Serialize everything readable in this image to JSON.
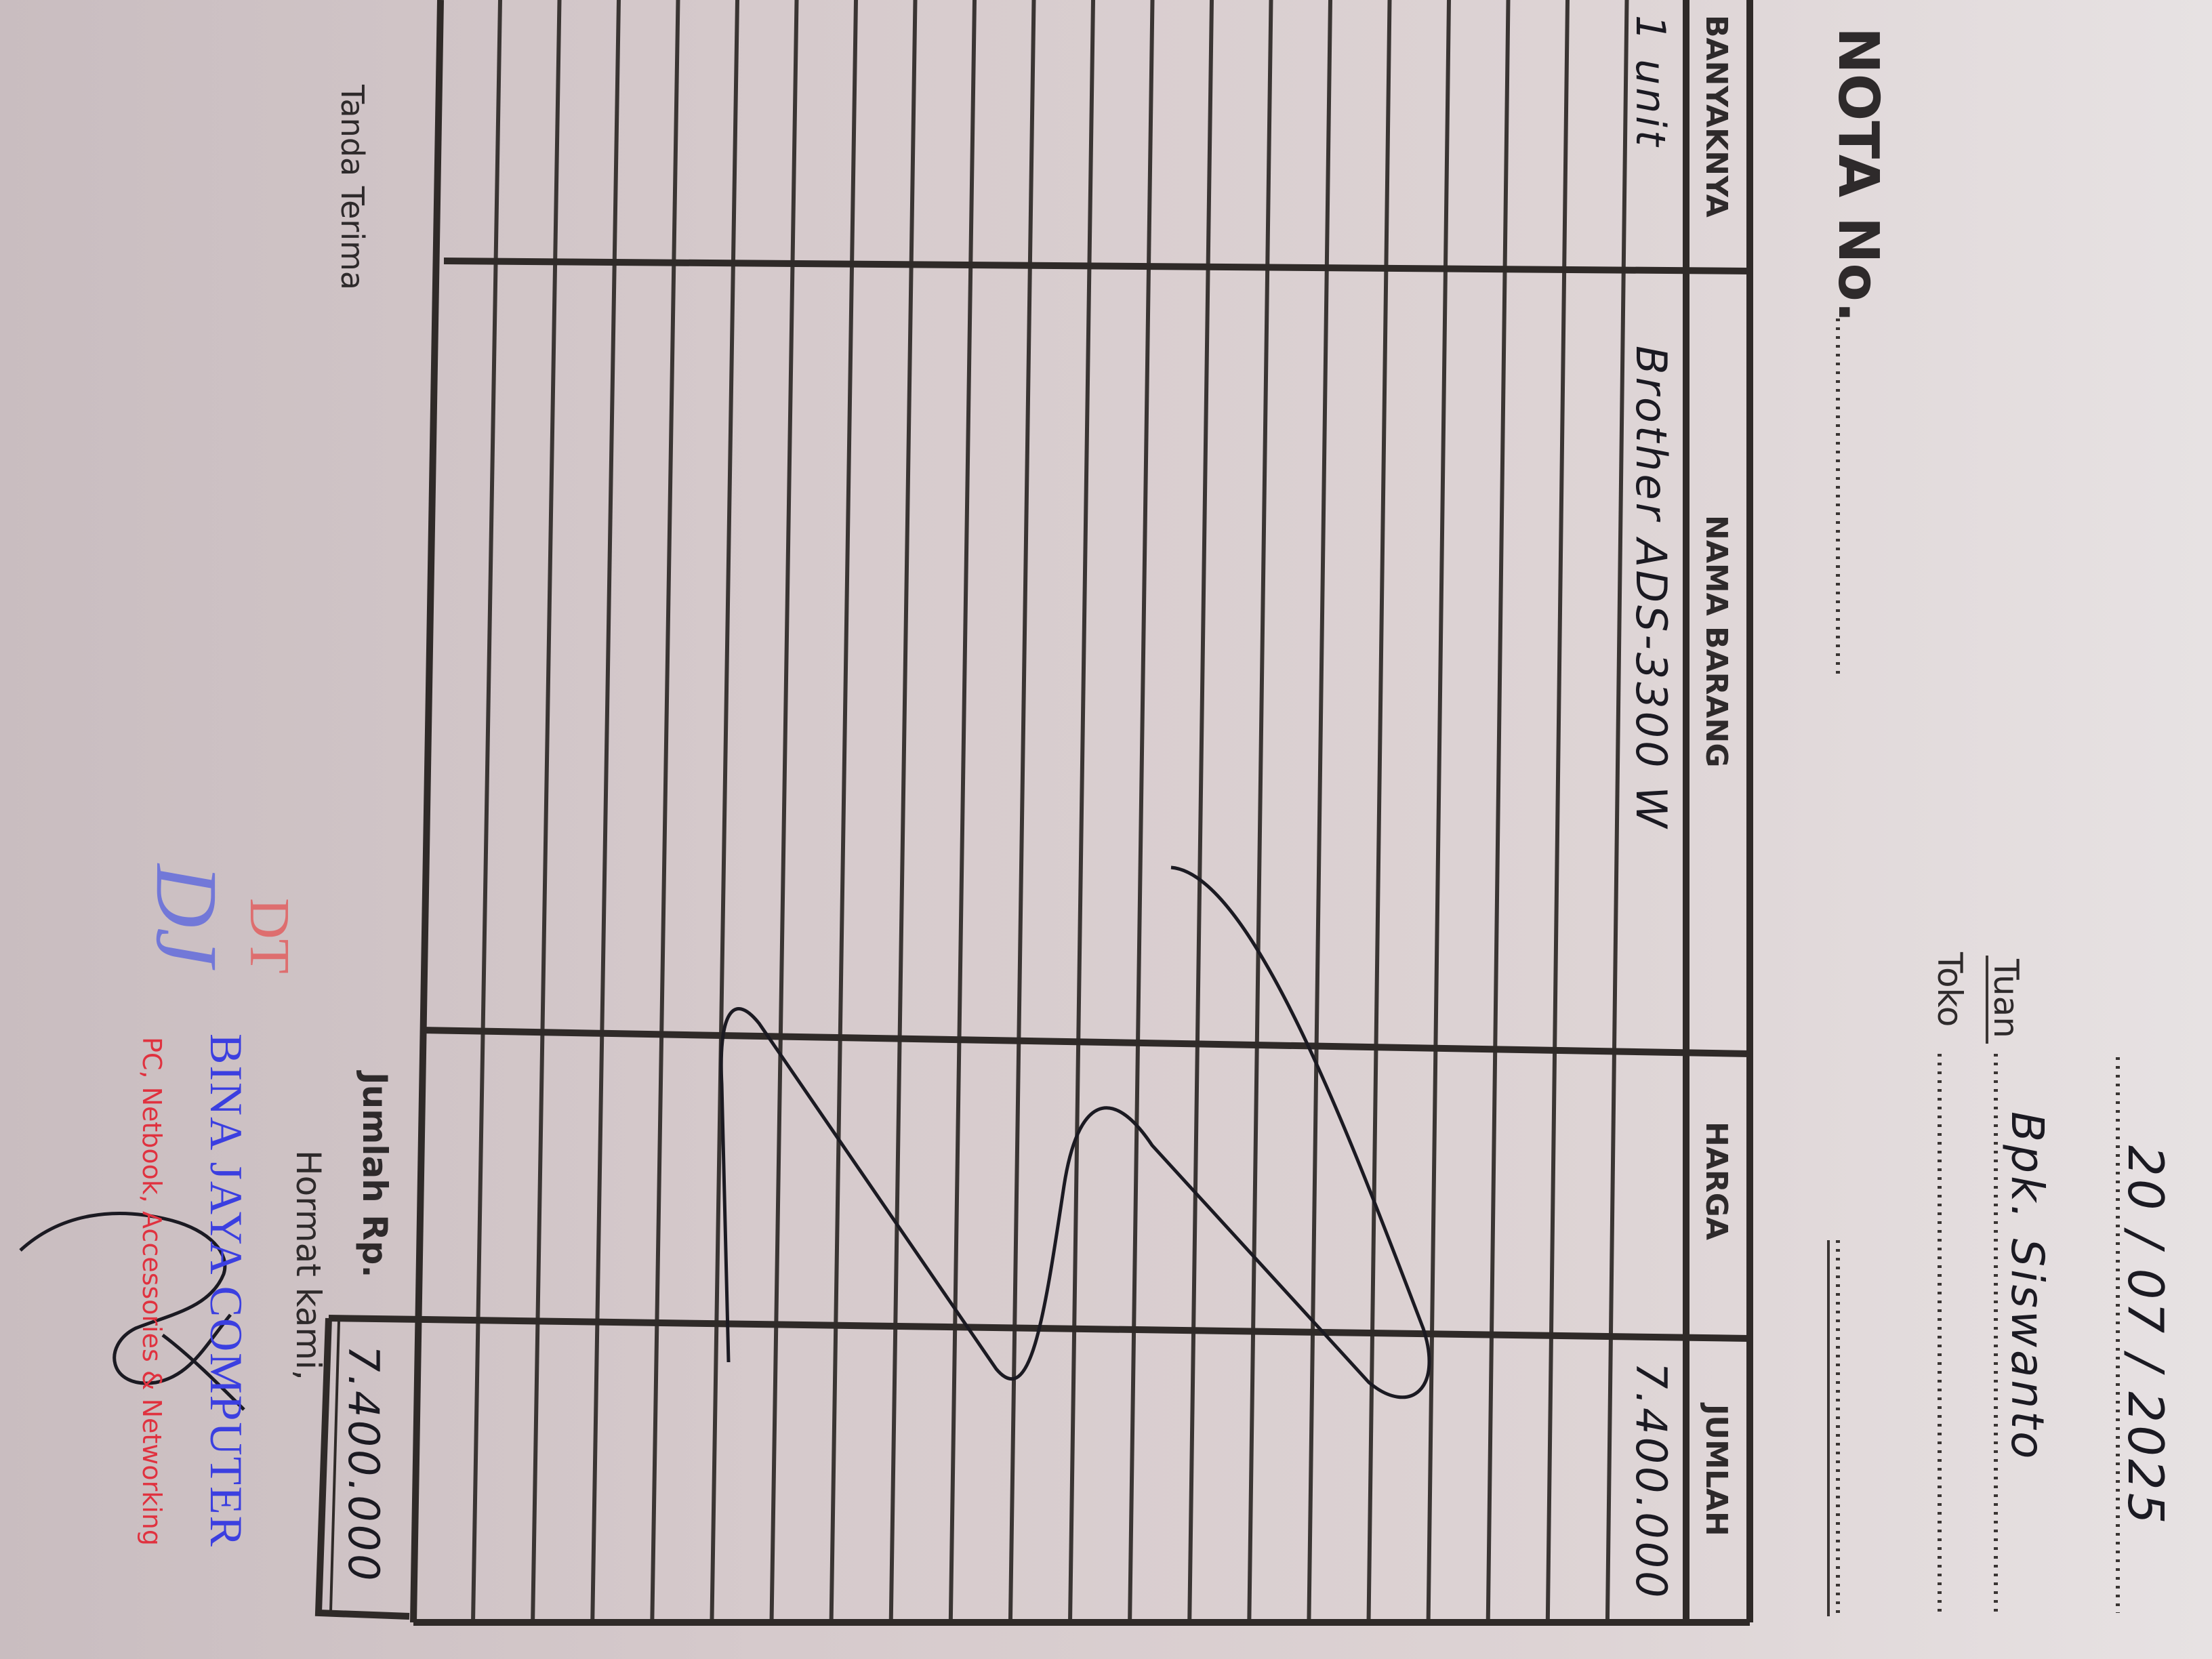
{
  "header": {
    "date": "20 / 07 / 2025",
    "tuan_label": "Tuan",
    "tuan_value": "Bpk. Siswanto",
    "toko_label": "Toko",
    "toko_value": "",
    "nota_label": "NOTA No."
  },
  "table": {
    "columns": [
      "BANYAKNYA",
      "NAMA BARANG",
      "HARGA",
      "JUMLAH"
    ],
    "rows": [
      {
        "banyaknya": "1 unit",
        "nama_barang": "Brother ADS-3300 W",
        "harga": "",
        "jumlah": "7.400.000"
      }
    ],
    "total_label": "Jumlah Rp.",
    "total_value": "7.400.000"
  },
  "footer": {
    "tanda_terima": "Tanda Terima",
    "hormat_kami": "Hormat kami,"
  },
  "stamp": {
    "logo_letters": "DJ DT",
    "company": "BINA JAYA COMPUTER",
    "tagline": "PC, Netbook, Accessories & Networking",
    "colors": {
      "company": "#3b3fe0",
      "tagline": "#e0323f",
      "logo_red": "#e35a5a"
    }
  },
  "colors": {
    "ink": "#1b1a22",
    "print": "#2e2a2b",
    "paper": "#d9cfd0"
  }
}
